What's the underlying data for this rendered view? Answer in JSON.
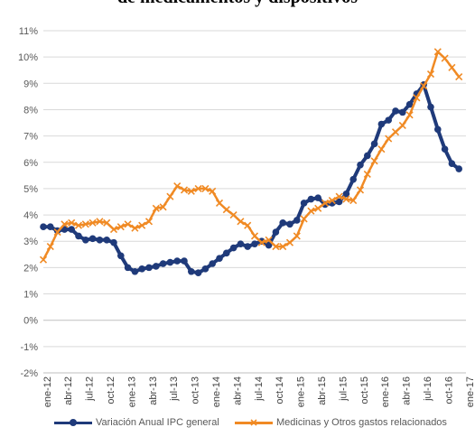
{
  "chart_data": {
    "type": "line",
    "title": "de medicamentos y dispositivos",
    "xlabel": "",
    "ylabel": "",
    "ylim": [
      -2,
      11
    ],
    "y_ticks": [
      "11%",
      "10%",
      "9%",
      "8%",
      "7%",
      "6%",
      "5%",
      "4%",
      "3%",
      "2%",
      "1%",
      "0%",
      "-1%",
      "-2%"
    ],
    "x_tick_labels": [
      "ene-12",
      "abr-12",
      "jul-12",
      "oct-12",
      "ene-13",
      "abr-13",
      "jul-13",
      "oct-13",
      "ene-14",
      "abr-14",
      "jul-14",
      "oct-14",
      "ene-15",
      "abr-15",
      "jul-15",
      "oct-15",
      "ene-16",
      "abr-16",
      "jul-16",
      "oct-16",
      "ene-17"
    ],
    "grid": "horizontal",
    "legend_position": "bottom",
    "series": [
      {
        "name": "Variación Anual IPC general",
        "color": "#1f3a7a",
        "marker": "circle",
        "values": [
          3.55,
          3.55,
          3.4,
          3.45,
          3.45,
          3.2,
          3.05,
          3.1,
          3.05,
          3.05,
          2.95,
          2.45,
          2.0,
          1.85,
          1.95,
          2.0,
          2.05,
          2.15,
          2.2,
          2.25,
          2.25,
          1.85,
          1.8,
          1.95,
          2.15,
          2.35,
          2.55,
          2.75,
          2.9,
          2.8,
          2.9,
          3.0,
          2.85,
          3.35,
          3.7,
          3.65,
          3.8,
          4.45,
          4.6,
          4.65,
          4.4,
          4.45,
          4.5,
          4.8,
          5.35,
          5.9,
          6.25,
          6.7,
          7.45,
          7.6,
          7.95,
          7.9,
          8.2,
          8.6,
          8.95,
          8.1,
          7.25,
          6.5,
          5.95,
          5.75
        ]
      },
      {
        "name": "Medicinas y Otros gastos relacionados",
        "color": "#f08a24",
        "marker": "cross",
        "values": [
          2.3,
          2.8,
          3.35,
          3.65,
          3.7,
          3.6,
          3.65,
          3.7,
          3.75,
          3.7,
          3.45,
          3.55,
          3.65,
          3.5,
          3.6,
          3.75,
          4.25,
          4.3,
          4.7,
          5.1,
          4.95,
          4.9,
          5.0,
          5.0,
          4.9,
          4.45,
          4.2,
          4.0,
          3.75,
          3.6,
          3.2,
          2.95,
          3.05,
          2.8,
          2.8,
          2.95,
          3.2,
          3.85,
          4.15,
          4.25,
          4.45,
          4.55,
          4.7,
          4.6,
          4.55,
          4.95,
          5.55,
          6.05,
          6.5,
          6.9,
          7.15,
          7.4,
          7.8,
          8.45,
          8.9,
          9.35,
          10.2,
          9.95,
          9.6,
          9.25
        ]
      }
    ]
  }
}
